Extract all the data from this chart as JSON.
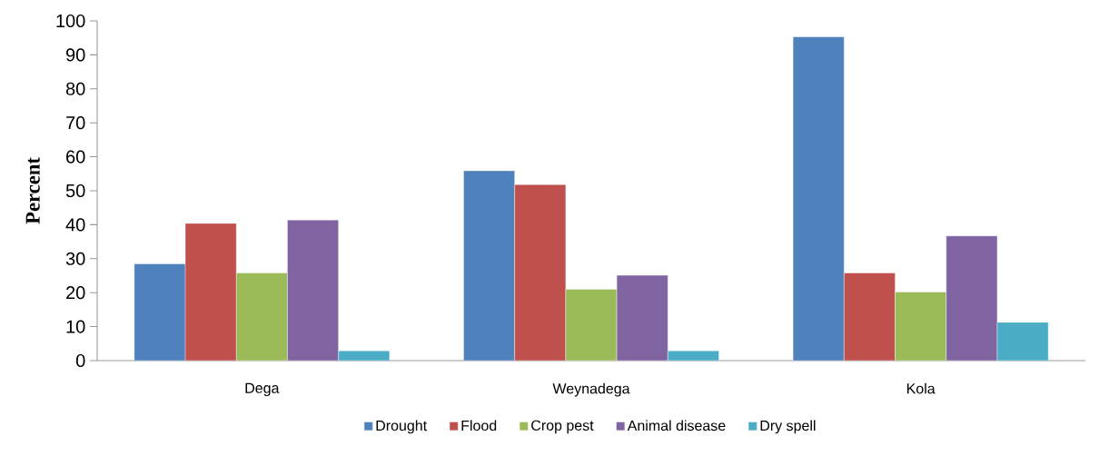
{
  "chart_data": {
    "type": "bar",
    "ylabel": "Percent",
    "categories": [
      "Dega",
      "Weynadega",
      "Kola"
    ],
    "series": [
      {
        "name": "Drought",
        "color": "#4f81bd",
        "values": [
          28.5,
          55.9,
          95.3
        ]
      },
      {
        "name": "Flood",
        "color": "#c0504d",
        "values": [
          40.4,
          51.8,
          25.8
        ]
      },
      {
        "name": "Crop pest",
        "color": "#9bbb59",
        "values": [
          25.8,
          21.0,
          20.2
        ]
      },
      {
        "name": "Animal disease",
        "color": "#8064a2",
        "values": [
          41.4,
          25.1,
          36.7
        ]
      },
      {
        "name": "Dry spell",
        "color": "#4bacc6",
        "values": [
          2.9,
          2.9,
          11.3
        ]
      }
    ],
    "ylim": [
      0,
      100
    ],
    "yticks": [
      0,
      10,
      20,
      30,
      40,
      50,
      60,
      70,
      80,
      90,
      100
    ],
    "grid": false,
    "legend": "bottom"
  }
}
